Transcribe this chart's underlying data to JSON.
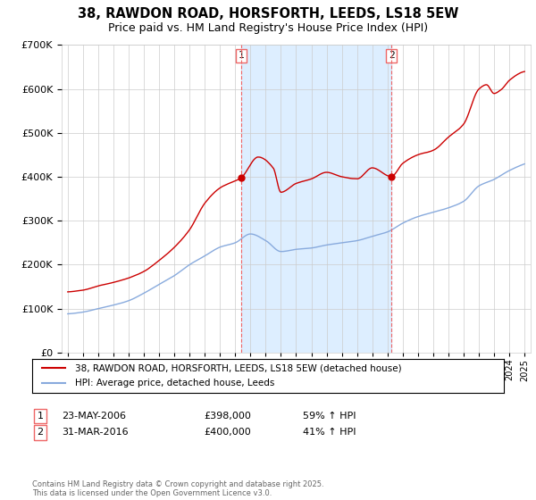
{
  "title": "38, RAWDON ROAD, HORSFORTH, LEEDS, LS18 5EW",
  "subtitle": "Price paid vs. HM Land Registry's House Price Index (HPI)",
  "title_fontsize": 10.5,
  "subtitle_fontsize": 9,
  "legend_label_red": "38, RAWDON ROAD, HORSFORTH, LEEDS, LS18 5EW (detached house)",
  "legend_label_blue": "HPI: Average price, detached house, Leeds",
  "sale1_date": "23-MAY-2006",
  "sale1_price": "£398,000",
  "sale1_hpi": "59% ↑ HPI",
  "sale1_label": "1",
  "sale1_x": 2006.39,
  "sale1_y": 398000,
  "sale2_date": "31-MAR-2016",
  "sale2_price": "£400,000",
  "sale2_hpi": "41% ↑ HPI",
  "sale2_label": "2",
  "sale2_x": 2016.25,
  "sale2_y": 400000,
  "ylim_min": 0,
  "ylim_max": 700000,
  "yticks": [
    0,
    100000,
    200000,
    300000,
    400000,
    500000,
    600000,
    700000
  ],
  "ytick_labels": [
    "£0",
    "£100K",
    "£200K",
    "£300K",
    "£400K",
    "£500K",
    "£600K",
    "£700K"
  ],
  "background_color": "#ffffff",
  "grid_color": "#cccccc",
  "red_color": "#cc0000",
  "blue_color": "#88aadd",
  "dashed_color": "#ee6666",
  "shade_color": "#ddeeff",
  "footer_text": "Contains HM Land Registry data © Crown copyright and database right 2025.\nThis data is licensed under the Open Government Licence v3.0.",
  "xlim_min": 1994.6,
  "xlim_max": 2025.4,
  "prop_anchors_x": [
    1995,
    1996,
    1997,
    1998,
    1999,
    2000,
    2001,
    2002,
    2003,
    2004,
    2005,
    2006.39,
    2007.5,
    2008.5,
    2009,
    2010,
    2011,
    2012,
    2013,
    2014,
    2015,
    2016.25,
    2017,
    2018,
    2019,
    2020,
    2021,
    2022,
    2022.5,
    2023,
    2023.5,
    2024,
    2025
  ],
  "prop_anchors_y": [
    138000,
    142000,
    152000,
    160000,
    170000,
    185000,
    210000,
    240000,
    280000,
    340000,
    375000,
    398000,
    445000,
    420000,
    365000,
    385000,
    395000,
    410000,
    400000,
    395000,
    420000,
    400000,
    430000,
    450000,
    460000,
    490000,
    520000,
    600000,
    610000,
    590000,
    600000,
    620000,
    640000
  ],
  "hpi_anchors_x": [
    1995,
    1996,
    1997,
    1998,
    1999,
    2000,
    2001,
    2002,
    2003,
    2004,
    2005,
    2006,
    2007,
    2008,
    2009,
    2010,
    2011,
    2012,
    2013,
    2014,
    2015,
    2016,
    2017,
    2018,
    2019,
    2020,
    2021,
    2022,
    2023,
    2024,
    2025
  ],
  "hpi_anchors_y": [
    88000,
    92000,
    100000,
    108000,
    118000,
    135000,
    155000,
    175000,
    200000,
    220000,
    240000,
    250000,
    270000,
    255000,
    230000,
    235000,
    238000,
    245000,
    250000,
    255000,
    265000,
    275000,
    295000,
    310000,
    320000,
    330000,
    345000,
    380000,
    395000,
    415000,
    430000
  ]
}
